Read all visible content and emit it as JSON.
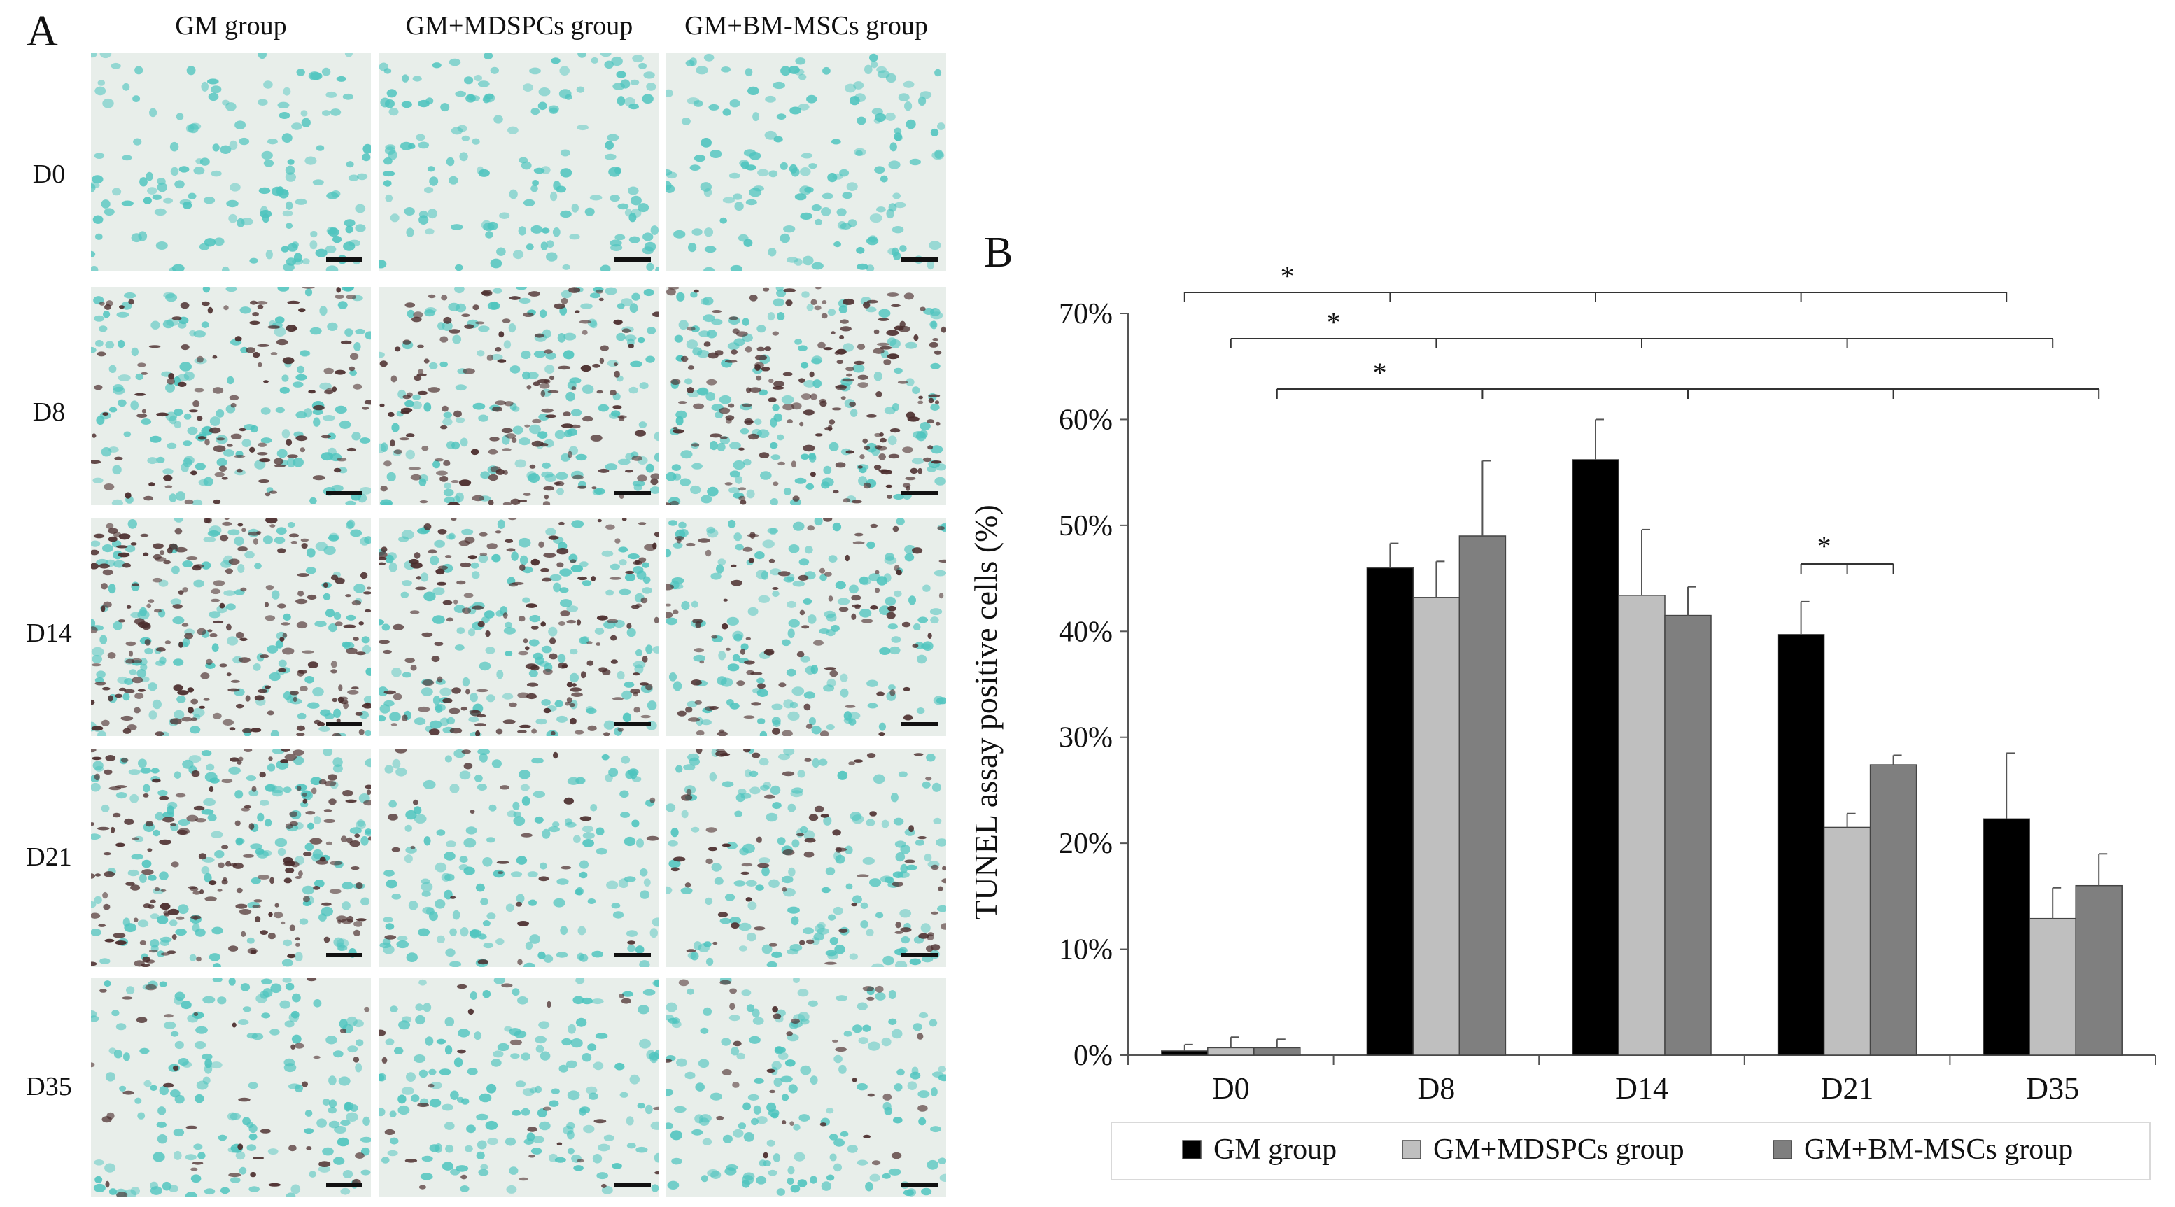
{
  "panel_a": {
    "letter": "A",
    "columns": [
      "GM group",
      "GM+MDSPCs group",
      "GM+BM-MSCs group"
    ],
    "rows": [
      "D0",
      "D8",
      "D14",
      "D21",
      "D35"
    ],
    "staining_density": [
      [
        0.0,
        0.0,
        0.0
      ],
      [
        0.35,
        0.45,
        0.55
      ],
      [
        0.6,
        0.5,
        0.3
      ],
      [
        0.55,
        0.08,
        0.22
      ],
      [
        0.12,
        0.08,
        0.1
      ]
    ],
    "colors": {
      "nucleus": "#4dc4be",
      "apoptotic": "#4a2c2c",
      "background": "#e8eeea"
    }
  },
  "panel_b": {
    "letter": "B",
    "significance_marker": "*"
  },
  "chart_data": {
    "type": "bar",
    "categories": [
      "D0",
      "D8",
      "D14",
      "D21",
      "D35"
    ],
    "series": [
      {
        "name": "GM group",
        "values": [
          0.4,
          46.0,
          56.2,
          39.7,
          22.3
        ],
        "errors": [
          0.6,
          2.3,
          3.8,
          3.1,
          6.2
        ],
        "color": "#000000"
      },
      {
        "name": "GM+MDSPCs group",
        "values": [
          0.7,
          43.2,
          43.4,
          21.5,
          12.9
        ],
        "errors": [
          1.0,
          3.4,
          6.2,
          1.3,
          2.9
        ],
        "color": "#bfbfbf"
      },
      {
        "name": "GM+BM-MSCs group",
        "values": [
          0.7,
          49.0,
          41.5,
          27.4,
          16.0
        ],
        "errors": [
          0.8,
          7.1,
          2.7,
          0.9,
          3.0
        ],
        "color": "#7f7f7f"
      }
    ],
    "ylabel": "TUNEL assay positive cells (%)",
    "ylim": [
      0,
      70
    ],
    "yticks": [
      "0%",
      "10%",
      "20%",
      "30%",
      "40%",
      "50%",
      "60%",
      "70%"
    ],
    "legend_position": "bottom",
    "significance": [
      {
        "label": "*",
        "from_category": "D0",
        "to_category": "D35",
        "series": "GM group"
      },
      {
        "label": "*",
        "from_category": "D0",
        "to_category": "D35",
        "series": "GM+MDSPCs group"
      },
      {
        "label": "*",
        "from_category": "D0",
        "to_category": "D35",
        "series": "GM+BM-MSCs group"
      },
      {
        "label": "*",
        "category": "D21",
        "within_group": true
      }
    ]
  }
}
